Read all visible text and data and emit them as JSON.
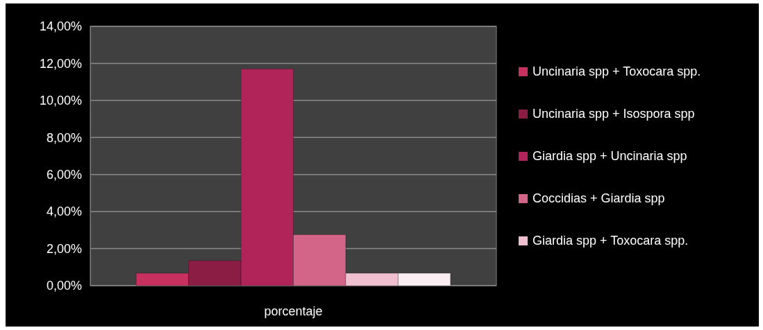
{
  "chart_data": {
    "type": "bar",
    "categories": [
      "porcentaje"
    ],
    "series": [
      {
        "name": "Uncinaria spp + Toxocara spp.",
        "color": "#c8305f",
        "values": [
          0.67
        ]
      },
      {
        "name": "Uncinaria spp + Isospora spp",
        "color": "#8b1c44",
        "values": [
          1.35
        ]
      },
      {
        "name": "Giardia spp + Uncinaria spp",
        "color": "#b0245a",
        "values": [
          11.7
        ]
      },
      {
        "name": "Coccidias + Giardia spp",
        "color": "#d36688",
        "values": [
          2.75
        ]
      },
      {
        "name": "Giardia spp + Toxocara spp.",
        "color": "#f0c0d0",
        "values": [
          0.67
        ]
      },
      {
        "color": "#fbeef2",
        "values": [
          0.67
        ]
      }
    ],
    "ylim": [
      0,
      14
    ],
    "yticks": [
      {
        "value": 0,
        "label": "0,00%"
      },
      {
        "value": 2,
        "label": "2,00%"
      },
      {
        "value": 4,
        "label": "4,00%"
      },
      {
        "value": 6,
        "label": "6,00%"
      },
      {
        "value": 8,
        "label": "8,00%"
      },
      {
        "value": 10,
        "label": "10,00%"
      },
      {
        "value": 12,
        "label": "12,00%"
      },
      {
        "value": 14,
        "label": "14,00%"
      }
    ],
    "grid": "y",
    "legend": "right"
  }
}
